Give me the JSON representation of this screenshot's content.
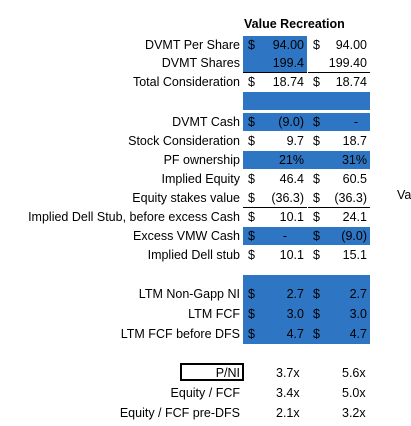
{
  "header": {
    "title": "Value Recreation"
  },
  "rows": {
    "dvmt_per_share": {
      "label": "DVMT Per Share",
      "col1": "94.00",
      "col2": "94.00"
    },
    "dvmt_shares": {
      "label": "DVMT Shares",
      "col1": "199.4",
      "col2": "199.40"
    },
    "total_consideration": {
      "label": "Total Consideration",
      "col1": "18.74",
      "col2": "18.74"
    },
    "dvmt_cash": {
      "label": "DVMT Cash",
      "col1": "(9.0)",
      "col2": "-"
    },
    "stock_consideration": {
      "label": "Stock Consideration",
      "col1": "9.7",
      "col2": "18.7"
    },
    "pf_ownership": {
      "label": "PF ownership",
      "col1": "21%",
      "col2": "31%"
    },
    "implied_equity": {
      "label": "Implied Equity",
      "col1": "46.4",
      "col2": "60.5"
    },
    "equity_stakes_value": {
      "label": "Equity stakes value",
      "col1": "(36.3)",
      "col2": "(36.3)"
    },
    "implied_dell_stub_before": {
      "label": "Implied Dell Stub, before excess Cash",
      "col1": "10.1",
      "col2": "24.1"
    },
    "excess_vmw_cash": {
      "label": "Excess VMW Cash",
      "col1": "-",
      "col2": "(9.0)"
    },
    "implied_dell_stub": {
      "label": "Implied Dell stub",
      "col1": "10.1",
      "col2": "15.1"
    },
    "ltm_non_gapp_ni": {
      "label": "LTM Non-Gapp NI",
      "col1": "2.7",
      "col2": "2.7"
    },
    "ltm_fcf": {
      "label": "LTM FCF",
      "col1": "3.0",
      "col2": "3.0"
    },
    "ltm_fcf_before_dfs": {
      "label": "LTM FCF before DFS",
      "col1": "4.7",
      "col2": "4.7"
    },
    "p_ni": {
      "label": "P/NI",
      "col1": "3.7x",
      "col2": "5.6x"
    },
    "equity_fcf": {
      "label": "Equity / FCF",
      "col1": "3.4x",
      "col2": "5.0x"
    },
    "equity_fcf_pre_dfs": {
      "label": "Equity / FCF pre-DFS",
      "col1": "2.1x",
      "col2": "3.2x"
    }
  },
  "currency_symbol": "$",
  "overflow_text": "Va",
  "colors": {
    "highlight": "#2e75c3"
  }
}
